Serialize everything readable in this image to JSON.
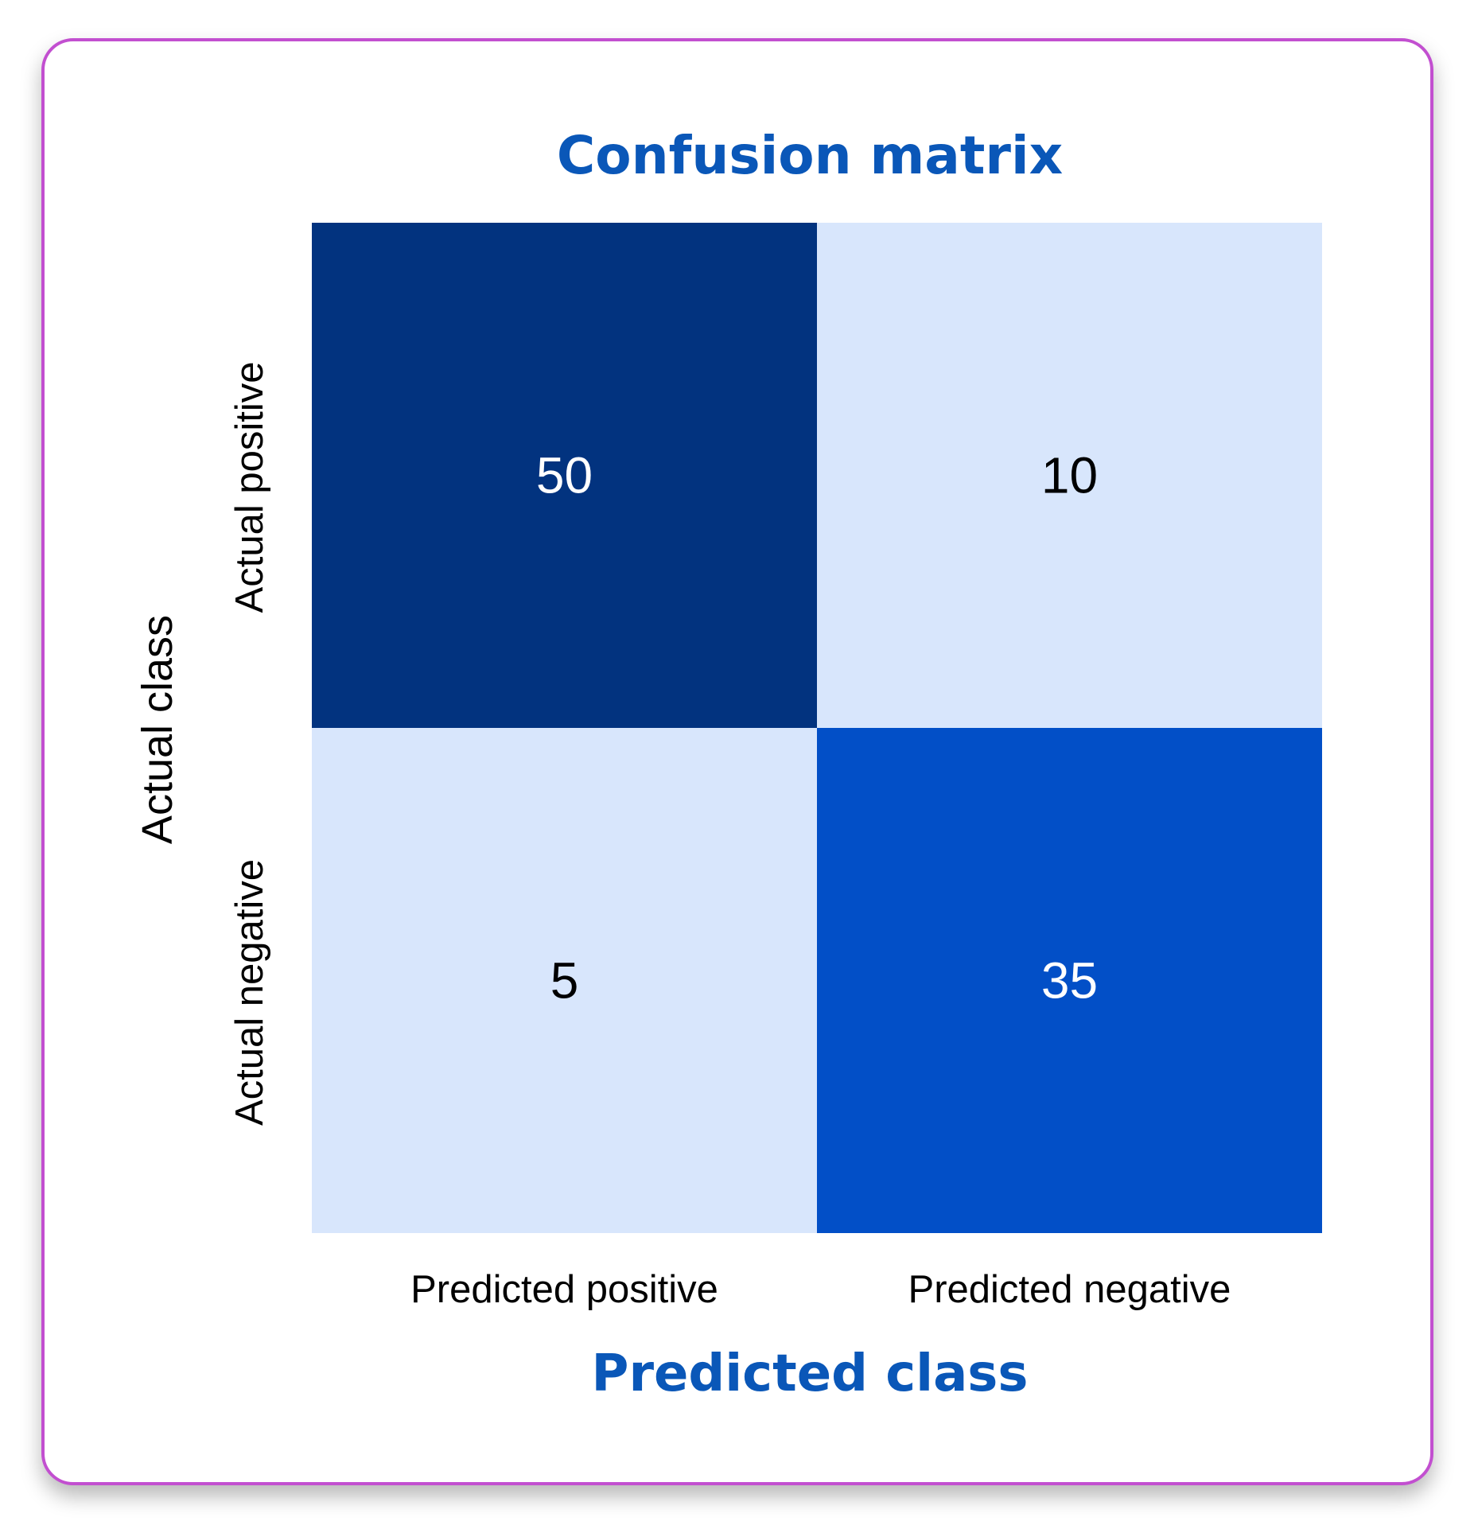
{
  "chart_data": {
    "type": "heatmap",
    "title": "Confusion matrix",
    "xlabel": "Predicted class",
    "ylabel": "Actual class",
    "x_categories": [
      "Predicted positive",
      "Predicted negative"
    ],
    "y_categories": [
      "Actual positive",
      "Actual negative"
    ],
    "values": [
      [
        50,
        10
      ],
      [
        5,
        35
      ]
    ],
    "colors": {
      "title": "#0a57b8",
      "cell_high": "#02337f",
      "cell_mid": "#0255d5",
      "cell_low": "#d8e6fc",
      "text_dark": "#000000",
      "text_light": "#ffffff",
      "card_border": "#c24fd0"
    }
  }
}
